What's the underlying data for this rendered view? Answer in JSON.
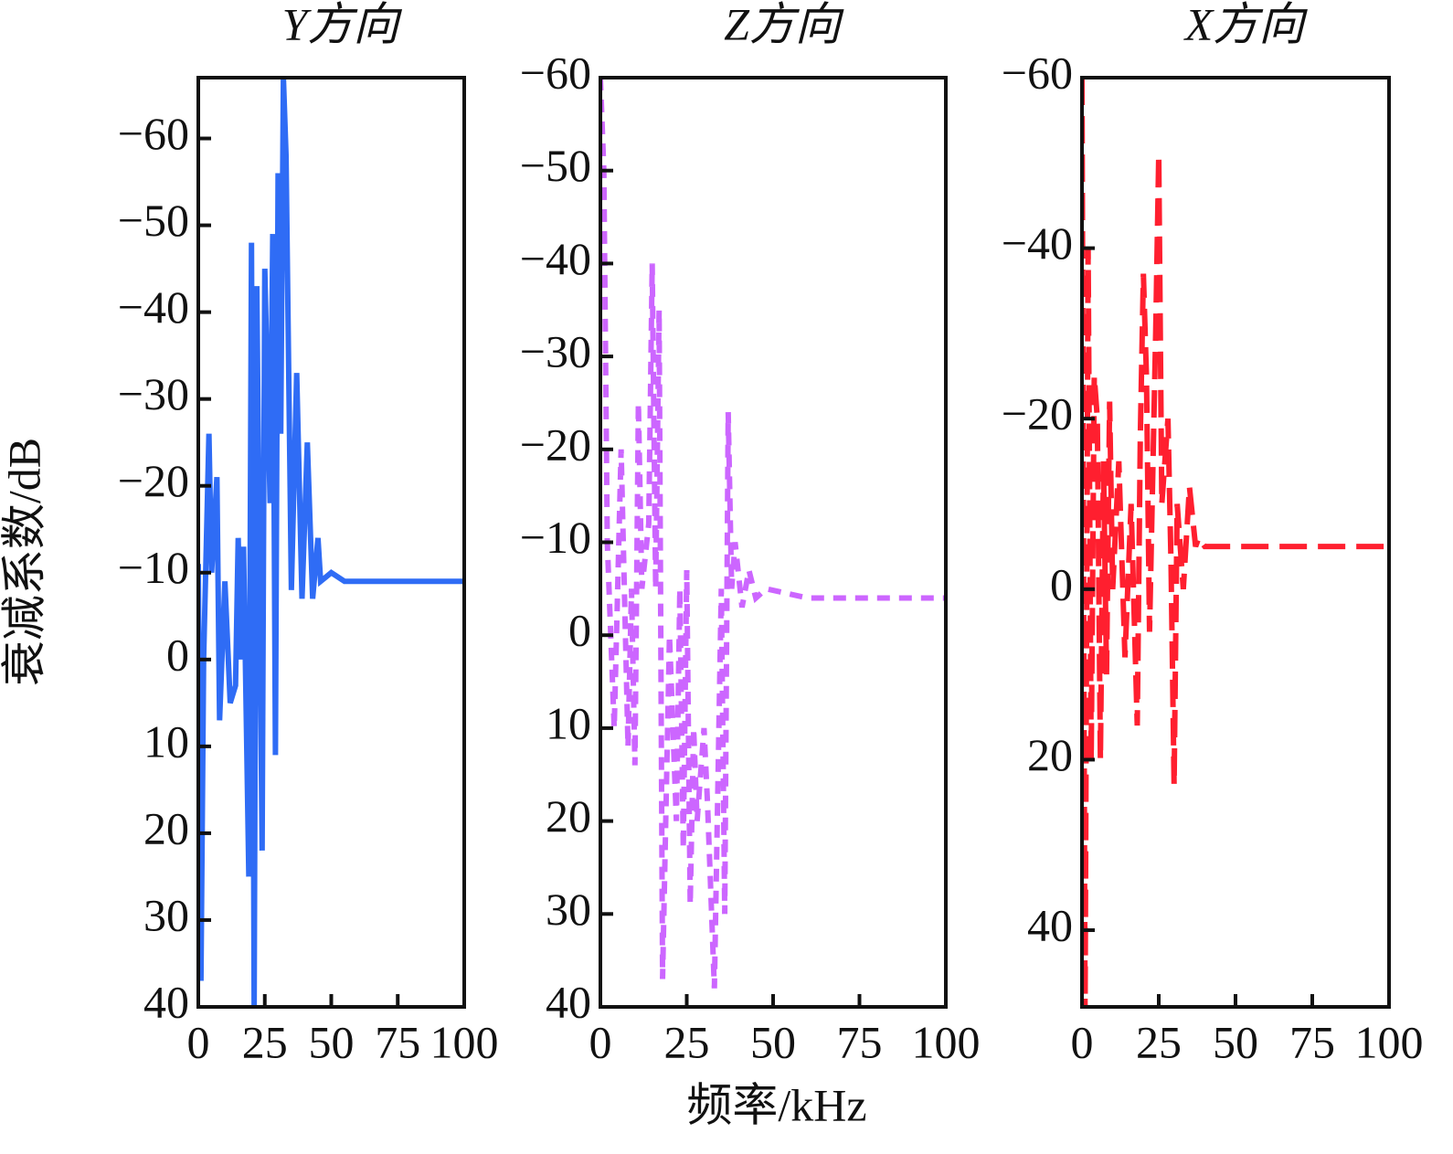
{
  "chart_data": [
    {
      "type": "line",
      "title": "Y方向",
      "y_label": "衰减系数/dB",
      "x": [
        0,
        1,
        2,
        4,
        5,
        7,
        8,
        10,
        12,
        14,
        15,
        16,
        17,
        19,
        20,
        21,
        22,
        24,
        25,
        27,
        28,
        29,
        30,
        31,
        32,
        33,
        35,
        37,
        39,
        41,
        43,
        45,
        46,
        50,
        55,
        100
      ],
      "series": [
        {
          "color": "#2f6cf5",
          "values": [
            -11,
            37,
            0,
            -26,
            -10,
            -21,
            7,
            -9,
            5,
            3,
            -14,
            0,
            -13,
            25,
            -48,
            40,
            -43,
            22,
            -45,
            -18,
            -49,
            11,
            -56,
            -26,
            -67,
            -58,
            -8,
            -33,
            -7,
            -25,
            -7,
            -14,
            -9,
            -10,
            -9,
            -9
          ]
        }
      ],
      "xlim": [
        0,
        100
      ],
      "xticks": [
        0,
        25,
        50,
        75,
        100
      ],
      "ylim": [
        40,
        -67
      ],
      "yticks": [
        {
          "value": -60,
          "label": "−60"
        },
        {
          "value": -50,
          "label": "−50"
        },
        {
          "value": -40,
          "label": "−40"
        },
        {
          "value": -30,
          "label": "−30"
        },
        {
          "value": -20,
          "label": "−20"
        },
        {
          "value": -10,
          "label": "−10"
        },
        0,
        10,
        20,
        30,
        40
      ]
    },
    {
      "type": "line",
      "title": "Z方向",
      "x_label": "频率/kHz",
      "x": [
        0,
        1,
        2,
        3,
        4,
        6,
        8,
        9,
        10,
        11,
        12,
        14,
        15,
        16,
        17,
        18,
        20,
        22,
        23,
        24,
        25,
        26,
        27,
        28,
        30,
        31,
        33,
        35,
        36,
        37,
        38,
        39,
        41,
        43,
        45,
        48,
        60,
        100
      ],
      "series": [
        {
          "color": "#cc66ff",
          "dash": "dashed",
          "values": [
            -60,
            -50,
            -10,
            0,
            10,
            -20,
            12,
            -5,
            14,
            -25,
            -5,
            -12,
            -40,
            -5,
            -35,
            37,
            0,
            20,
            -5,
            23,
            -7,
            29,
            10,
            20,
            10,
            18,
            38,
            -5,
            30,
            -24,
            -5,
            -10,
            -3,
            -7,
            -4,
            -5,
            -4,
            -4
          ]
        }
      ],
      "xlim": [
        0,
        100
      ],
      "xticks": [
        0,
        25,
        50,
        75,
        100
      ],
      "ylim": [
        40,
        -60
      ],
      "yticks": [
        {
          "value": -60,
          "label": "−60"
        },
        {
          "value": -50,
          "label": "−50"
        },
        {
          "value": -40,
          "label": "−40"
        },
        {
          "value": -30,
          "label": "−30"
        },
        {
          "value": -20,
          "label": "−20"
        },
        {
          "value": -10,
          "label": "−10"
        },
        0,
        10,
        20,
        30,
        40
      ]
    },
    {
      "type": "line",
      "title": "X方向",
      "x": [
        0,
        1,
        2,
        3,
        4,
        5,
        6,
        7,
        8,
        9,
        10,
        12,
        14,
        16,
        18,
        19,
        20,
        21,
        22,
        24,
        25,
        26,
        28,
        29,
        30,
        31,
        32,
        33,
        35,
        37,
        38,
        40,
        100
      ],
      "series": [
        {
          "color": "#ff1f2f",
          "dash": "long-dashed",
          "values": [
            -60,
            50,
            -40,
            20,
            -25,
            -20,
            20,
            -15,
            10,
            -22,
            0,
            -15,
            8,
            -10,
            16,
            -18,
            -37,
            -25,
            5,
            -30,
            -51,
            -10,
            -20,
            -3,
            23,
            -10,
            -5,
            0,
            -12,
            -5,
            -6,
            -5,
            -5
          ]
        }
      ],
      "xlim": [
        0,
        100
      ],
      "xticks": [
        0,
        25,
        50,
        75,
        100
      ],
      "ylim": [
        49,
        -60
      ],
      "yticks": [
        {
          "value": -60,
          "label": "−60"
        },
        {
          "value": -40,
          "label": "−40"
        },
        {
          "value": -20,
          "label": "−20"
        },
        0,
        20,
        40
      ]
    }
  ]
}
